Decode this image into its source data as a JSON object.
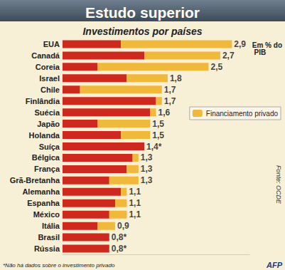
{
  "chart_data": {
    "type": "bar",
    "title": "Estudo superior",
    "subtitle": "Investimentos por países",
    "orientation": "horizontal",
    "stacked": true,
    "grid": false,
    "tick_labels": "y",
    "legend": "right",
    "categories": [
      "EUA",
      "Canadá",
      "Coreia",
      "Israel",
      "Chile",
      "Finlândia",
      "Suécia",
      "Japão",
      "Holanda",
      "Suíça",
      "Bélgica",
      "França",
      "Grã-Bretanha",
      "Alemanha",
      "Espanha",
      "México",
      "Itália",
      "Brasil",
      "Rússia"
    ],
    "values": [
      2.9,
      2.7,
      2.5,
      1.8,
      1.7,
      1.7,
      1.6,
      1.5,
      1.5,
      1.4,
      1.3,
      1.3,
      1.3,
      1.1,
      1.1,
      1.1,
      0.9,
      0.8,
      0.8
    ],
    "value_labels": [
      "2,9",
      "2,7",
      "2,5",
      "1,8",
      "1,7",
      "1,7",
      "1,6",
      "1,5",
      "1,5",
      "1,4*",
      "1,3",
      "1,3",
      "1,3",
      "1,1",
      "1,1",
      "1,1",
      "0,9",
      "0,8*",
      "0,8*"
    ],
    "series": [
      {
        "color": "#cc2a1e",
        "values": [
          1.0,
          1.4,
          0.6,
          1.1,
          0.3,
          1.6,
          1.5,
          0.6,
          1.0,
          1.4,
          1.2,
          1.1,
          0.8,
          1.0,
          0.9,
          0.8,
          0.6,
          0.8,
          0.8
        ]
      },
      {
        "name": "Financiamento privado",
        "color": "#f0b93b",
        "values": [
          1.9,
          1.3,
          1.9,
          0.7,
          1.4,
          0.1,
          0.1,
          0.9,
          0.5,
          null,
          0.1,
          0.2,
          0.5,
          0.1,
          0.2,
          0.3,
          0.3,
          null,
          null
        ]
      }
    ],
    "xlim": [
      0,
      3.2
    ],
    "annotations": [
      "Em % do PIB",
      "Fonte: OCDE",
      "*Não há dados sobre o investimento privado",
      "AFP"
    ]
  }
}
